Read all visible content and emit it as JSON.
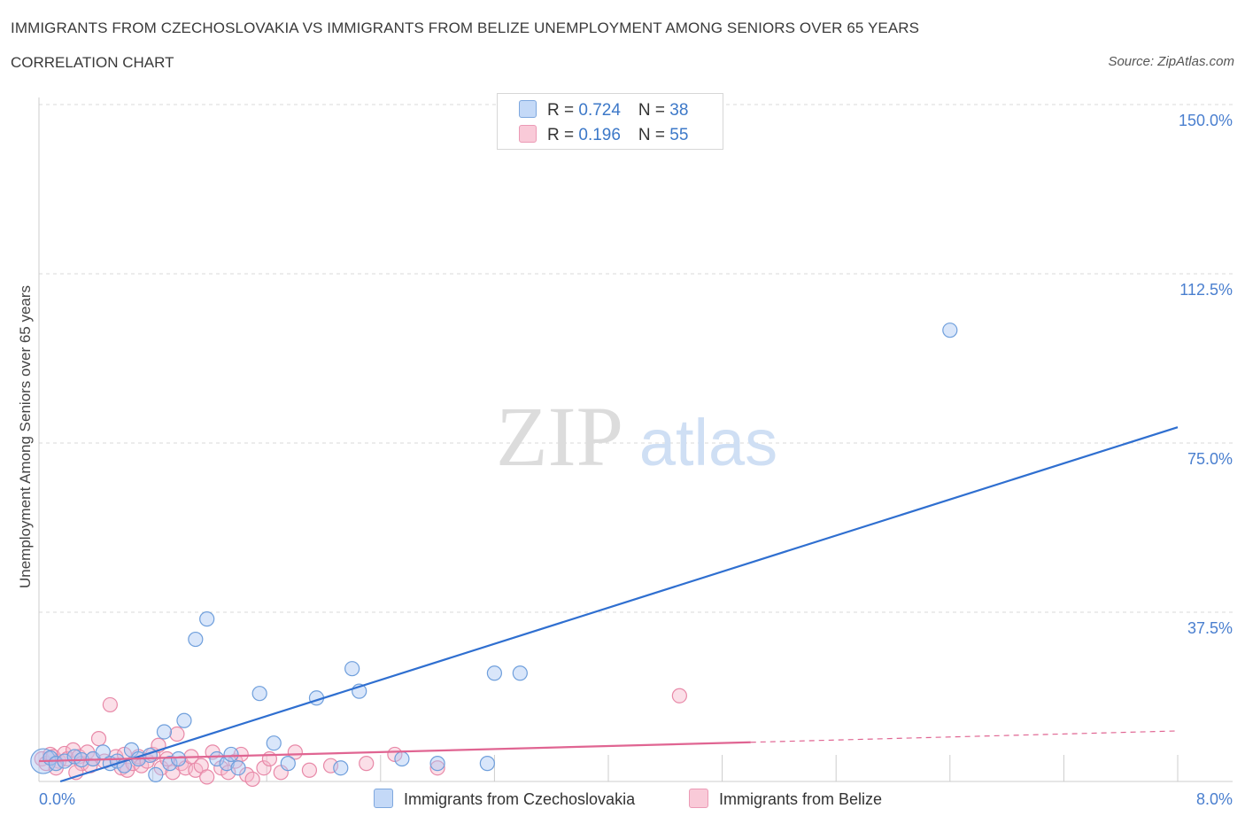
{
  "title": "IMMIGRANTS FROM CZECHOSLOVAKIA VS IMMIGRANTS FROM BELIZE UNEMPLOYMENT AMONG SENIORS OVER 65 YEARS",
  "subtitle": "CORRELATION CHART",
  "source": "Source: ZipAtlas.com",
  "watermark": {
    "zip": "ZIP",
    "atlas": "atlas"
  },
  "legend": {
    "rows": [
      {
        "r_label": "R = ",
        "r_value": "0.724",
        "n_label": "N = ",
        "n_value": "38",
        "color": "#aac8f5"
      },
      {
        "r_label": "R = ",
        "r_value": " 0.196",
        "n_label": "N = ",
        "n_value": "55",
        "color": "#f7b8cb"
      }
    ]
  },
  "bottom_legend": {
    "czech": "Immigrants from Czechoslovakia",
    "belize": "Immigrants from Belize"
  },
  "colors": {
    "blue_fill": "#aac8f5",
    "blue_stroke": "#6f9fdc",
    "blue_line": "#2f6fd0",
    "pink_fill": "#f7b8cb",
    "pink_stroke": "#e889a8",
    "pink_line": "#e06592",
    "grid": "#d9d9d9",
    "tick_text": "#4a7fcf"
  },
  "chart_data": {
    "type": "scatter",
    "title": "IMMIGRANTS FROM CZECHOSLOVAKIA VS IMMIGRANTS FROM BELIZE UNEMPLOYMENT AMONG SENIORS OVER 65 YEARS",
    "xlabel": "",
    "ylabel": "Unemployment Among Seniors over 65 years",
    "xlim": [
      0,
      8.0
    ],
    "ylim": [
      0,
      150
    ],
    "x_tick_labels": [
      "0.0%",
      "8.0%"
    ],
    "y_ticks": [
      {
        "value": 150,
        "label": "150.0%"
      },
      {
        "value": 112.5,
        "label": "112.5%"
      },
      {
        "value": 75,
        "label": "75.0%"
      },
      {
        "value": 37.5,
        "label": "37.5%"
      }
    ],
    "grid": true,
    "series": [
      {
        "name": "Immigrants from Czechoslovakia",
        "R": 0.724,
        "N": 38,
        "trend": {
          "x": [
            0.15,
            8.0
          ],
          "y": [
            0.0,
            78.5
          ],
          "dashed_from": null
        },
        "points": [
          {
            "x": 0.03,
            "y": 4.5,
            "big": true
          },
          {
            "x": 0.08,
            "y": 5.2
          },
          {
            "x": 0.12,
            "y": 4.0
          },
          {
            "x": 0.18,
            "y": 4.5
          },
          {
            "x": 0.25,
            "y": 5.5
          },
          {
            "x": 0.3,
            "y": 4.8
          },
          {
            "x": 0.38,
            "y": 5.0
          },
          {
            "x": 0.45,
            "y": 6.5
          },
          {
            "x": 0.5,
            "y": 4.0
          },
          {
            "x": 0.55,
            "y": 4.5
          },
          {
            "x": 0.65,
            "y": 7.0
          },
          {
            "x": 0.7,
            "y": 5.0
          },
          {
            "x": 0.78,
            "y": 5.8
          },
          {
            "x": 0.82,
            "y": 1.5
          },
          {
            "x": 0.88,
            "y": 11.0
          },
          {
            "x": 0.92,
            "y": 4.0
          },
          {
            "x": 0.98,
            "y": 5.0
          },
          {
            "x": 1.02,
            "y": 13.5
          },
          {
            "x": 1.1,
            "y": 31.5
          },
          {
            "x": 1.18,
            "y": 36.0
          },
          {
            "x": 1.25,
            "y": 5.0
          },
          {
            "x": 1.32,
            "y": 4.0
          },
          {
            "x": 1.4,
            "y": 3.0
          },
          {
            "x": 1.55,
            "y": 19.5
          },
          {
            "x": 1.65,
            "y": 8.5
          },
          {
            "x": 1.75,
            "y": 4.0
          },
          {
            "x": 1.95,
            "y": 18.5
          },
          {
            "x": 2.12,
            "y": 3.0
          },
          {
            "x": 2.2,
            "y": 25.0
          },
          {
            "x": 2.25,
            "y": 20.0
          },
          {
            "x": 2.55,
            "y": 5.0
          },
          {
            "x": 2.8,
            "y": 4.0
          },
          {
            "x": 3.15,
            "y": 4.0
          },
          {
            "x": 3.2,
            "y": 24.0
          },
          {
            "x": 3.38,
            "y": 24.0
          },
          {
            "x": 6.4,
            "y": 100.0
          },
          {
            "x": 1.35,
            "y": 6.0
          },
          {
            "x": 0.6,
            "y": 3.5
          }
        ]
      },
      {
        "name": "Immigrants from Belize",
        "R": 0.196,
        "N": 55,
        "trend": {
          "x": [
            0.0,
            8.0
          ],
          "y": [
            4.5,
            11.2
          ],
          "dashed_from": 5.0
        },
        "points": [
          {
            "x": 0.02,
            "y": 5.0
          },
          {
            "x": 0.05,
            "y": 4.0
          },
          {
            "x": 0.08,
            "y": 6.0
          },
          {
            "x": 0.1,
            "y": 5.5
          },
          {
            "x": 0.14,
            "y": 4.5
          },
          {
            "x": 0.18,
            "y": 6.2
          },
          {
            "x": 0.2,
            "y": 5.0
          },
          {
            "x": 0.24,
            "y": 7.0
          },
          {
            "x": 0.28,
            "y": 5.5
          },
          {
            "x": 0.3,
            "y": 4.0
          },
          {
            "x": 0.34,
            "y": 6.5
          },
          {
            "x": 0.38,
            "y": 5.0
          },
          {
            "x": 0.42,
            "y": 9.5
          },
          {
            "x": 0.46,
            "y": 4.5
          },
          {
            "x": 0.5,
            "y": 17.0
          },
          {
            "x": 0.54,
            "y": 5.5
          },
          {
            "x": 0.58,
            "y": 3.0
          },
          {
            "x": 0.6,
            "y": 6.0
          },
          {
            "x": 0.62,
            "y": 2.5
          },
          {
            "x": 0.66,
            "y": 4.0
          },
          {
            "x": 0.7,
            "y": 5.5
          },
          {
            "x": 0.72,
            "y": 3.5
          },
          {
            "x": 0.76,
            "y": 4.5
          },
          {
            "x": 0.8,
            "y": 6.0
          },
          {
            "x": 0.84,
            "y": 8.0
          },
          {
            "x": 0.86,
            "y": 3.0
          },
          {
            "x": 0.9,
            "y": 5.0
          },
          {
            "x": 0.94,
            "y": 2.0
          },
          {
            "x": 0.97,
            "y": 10.5
          },
          {
            "x": 1.0,
            "y": 4.0
          },
          {
            "x": 1.03,
            "y": 3.0
          },
          {
            "x": 1.07,
            "y": 5.5
          },
          {
            "x": 1.1,
            "y": 2.5
          },
          {
            "x": 1.14,
            "y": 3.5
          },
          {
            "x": 1.18,
            "y": 1.0
          },
          {
            "x": 1.22,
            "y": 6.5
          },
          {
            "x": 1.28,
            "y": 3.0
          },
          {
            "x": 1.33,
            "y": 2.0
          },
          {
            "x": 1.38,
            "y": 4.5
          },
          {
            "x": 1.42,
            "y": 6.0
          },
          {
            "x": 1.46,
            "y": 1.5
          },
          {
            "x": 1.5,
            "y": 0.5
          },
          {
            "x": 1.58,
            "y": 3.0
          },
          {
            "x": 1.62,
            "y": 5.0
          },
          {
            "x": 1.7,
            "y": 2.0
          },
          {
            "x": 1.8,
            "y": 6.5
          },
          {
            "x": 1.9,
            "y": 2.5
          },
          {
            "x": 2.05,
            "y": 3.5
          },
          {
            "x": 2.3,
            "y": 4.0
          },
          {
            "x": 2.5,
            "y": 6.0
          },
          {
            "x": 2.8,
            "y": 3.0
          },
          {
            "x": 4.5,
            "y": 19.0
          },
          {
            "x": 0.36,
            "y": 3.5
          },
          {
            "x": 0.12,
            "y": 3.0
          },
          {
            "x": 0.26,
            "y": 2.0
          }
        ]
      }
    ]
  }
}
